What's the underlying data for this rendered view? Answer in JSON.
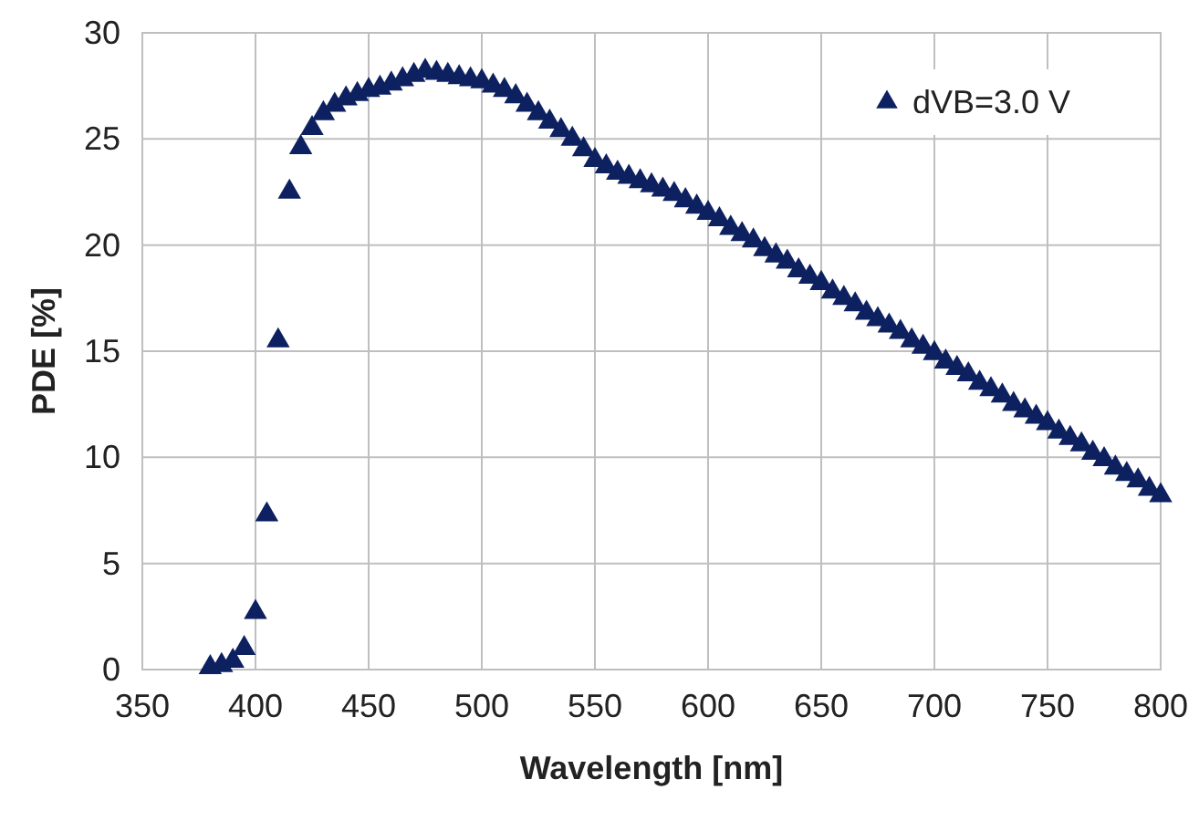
{
  "chart_data": {
    "type": "scatter",
    "xlabel": "Wavelength [nm]",
    "ylabel": "PDE [%]",
    "xlim": [
      350,
      800
    ],
    "ylim": [
      0,
      30
    ],
    "xticks": [
      350,
      400,
      450,
      500,
      550,
      600,
      650,
      700,
      750,
      800
    ],
    "yticks": [
      0,
      5,
      10,
      15,
      20,
      25,
      30
    ],
    "grid": true,
    "legend": "top right",
    "marker": "triangle",
    "x": [
      380,
      385,
      390,
      395,
      400,
      405,
      410,
      415,
      420,
      425,
      430,
      435,
      440,
      445,
      450,
      455,
      460,
      465,
      470,
      475,
      480,
      485,
      490,
      495,
      500,
      505,
      510,
      515,
      520,
      525,
      530,
      535,
      540,
      545,
      550,
      555,
      560,
      565,
      570,
      575,
      580,
      585,
      590,
      595,
      600,
      605,
      610,
      615,
      620,
      625,
      630,
      635,
      640,
      645,
      650,
      655,
      660,
      665,
      670,
      675,
      680,
      685,
      690,
      695,
      700,
      705,
      710,
      715,
      720,
      725,
      730,
      735,
      740,
      745,
      750,
      755,
      760,
      765,
      770,
      775,
      780,
      785,
      790,
      795,
      800
    ],
    "series": [
      {
        "name": "dVB=3.0 V",
        "color": "#0d2060",
        "values": [
          0.1,
          0.2,
          0.4,
          1.0,
          2.7,
          7.3,
          15.5,
          22.5,
          24.6,
          25.5,
          26.2,
          26.6,
          26.9,
          27.1,
          27.3,
          27.4,
          27.6,
          27.8,
          28.0,
          28.2,
          28.1,
          28.0,
          27.9,
          27.8,
          27.7,
          27.5,
          27.3,
          27.0,
          26.6,
          26.2,
          25.8,
          25.4,
          25.0,
          24.5,
          24.0,
          23.7,
          23.4,
          23.2,
          23.0,
          22.8,
          22.6,
          22.4,
          22.1,
          21.8,
          21.5,
          21.2,
          20.8,
          20.5,
          20.2,
          19.8,
          19.5,
          19.2,
          18.8,
          18.5,
          18.2,
          17.8,
          17.5,
          17.2,
          16.8,
          16.5,
          16.2,
          15.9,
          15.5,
          15.2,
          14.9,
          14.5,
          14.2,
          13.9,
          13.5,
          13.2,
          12.9,
          12.5,
          12.2,
          11.9,
          11.6,
          11.2,
          10.9,
          10.6,
          10.2,
          9.9,
          9.5,
          9.2,
          8.9,
          8.5,
          8.2
        ]
      }
    ]
  }
}
